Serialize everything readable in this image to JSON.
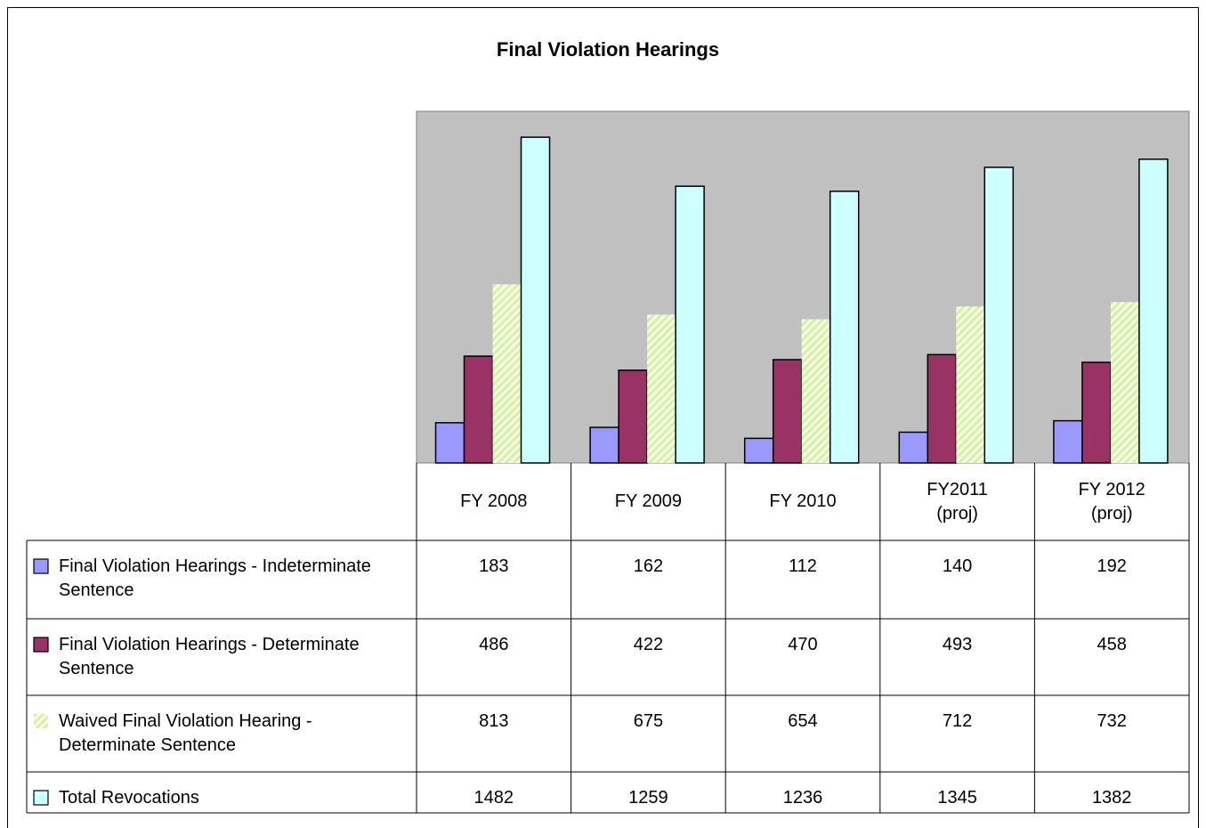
{
  "chart_data": {
    "type": "bar",
    "title": "Final Violation Hearings",
    "categories": [
      "FY 2008",
      "FY 2009",
      "FY 2010",
      "FY2011\n(proj)",
      "FY 2012\n(proj)"
    ],
    "series": [
      {
        "name": "Final Violation Hearings - Indeterminate Sentence",
        "color": "#9999ff",
        "values": [
          183,
          162,
          112,
          140,
          192
        ]
      },
      {
        "name": "Final Violation Hearings - Determinate Sentence",
        "color": "#993366",
        "values": [
          486,
          422,
          470,
          493,
          458
        ]
      },
      {
        "name": "Waived Final Violation Hearing - Determinate Sentence",
        "color": "#e4f5bf",
        "values": [
          813,
          675,
          654,
          712,
          732
        ]
      },
      {
        "name": "Total Revocations",
        "color": "#ccffff",
        "values": [
          1482,
          1259,
          1236,
          1345,
          1382
        ]
      }
    ],
    "ylim": [
      0,
      1600
    ],
    "plot_background": "#c0c0c0"
  }
}
